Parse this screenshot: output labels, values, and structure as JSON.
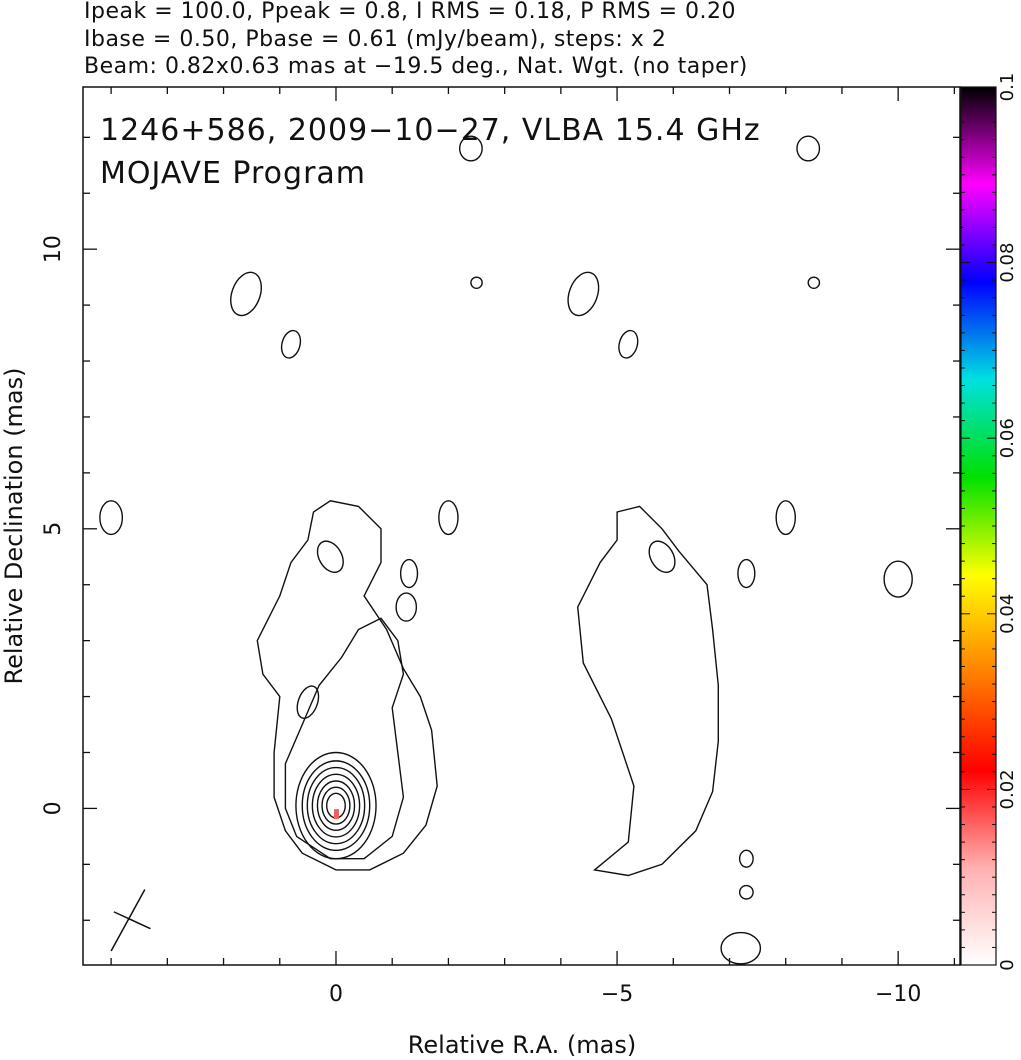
{
  "header": {
    "line1": "Ipeak = 100.0, Ppeak = 0.8, I RMS = 0.18, P RMS = 0.20",
    "line2": "Ibase = 0.50, Pbase = 0.61 (mJy/beam), steps: x 2",
    "line3": "Beam: 0.82x0.63 mas at −19.5 deg., Nat. Wgt. (no taper)"
  },
  "plot_text": {
    "line1": "1246+586, 2009−10−27, VLBA 15.4 GHz",
    "line2": "MOJAVE Program"
  },
  "chart_data": {
    "type": "contour",
    "xlabel": "Relative R.A. (mas)",
    "ylabel": "Relative Declination (mas)",
    "xlim": [
      4.5,
      -11.1
    ],
    "ylim": [
      -2.8,
      12.9
    ],
    "x_ticks": [
      {
        "value": 0,
        "label": "0"
      },
      {
        "value": -5,
        "label": "−5"
      },
      {
        "value": -10,
        "label": "−10"
      }
    ],
    "y_ticks": [
      {
        "value": 0,
        "label": "0"
      },
      {
        "value": 5,
        "label": "5"
      },
      {
        "value": 10,
        "label": "10"
      }
    ],
    "panels": [
      {
        "name": "I",
        "offset_x": 0
      },
      {
        "name": "P",
        "offset_x": -6
      }
    ],
    "contour_levels_mJy_per_beam": [
      0.5,
      1,
      2,
      4,
      8,
      16,
      32,
      64
    ],
    "core_peak": {
      "x": 0,
      "y": 0,
      "value": 100.0
    },
    "beam": {
      "major": 0.82,
      "minor": 0.63,
      "pa_deg": -19.5
    },
    "colorbar": {
      "min": 0,
      "max": 0.1,
      "ticks": [
        {
          "value": 0,
          "label": "0"
        },
        {
          "value": 0.02,
          "label": "0.02"
        },
        {
          "value": 0.04,
          "label": "0.04"
        },
        {
          "value": 0.06,
          "label": "0.06"
        },
        {
          "value": 0.08,
          "label": "0.08"
        },
        {
          "value": 0.1,
          "label": "0.1"
        }
      ],
      "colors": [
        "#ffffff",
        "#ffb0b0",
        "#ff0000",
        "#ff8000",
        "#ffff00",
        "#00e000",
        "#00e0e0",
        "#0000ff",
        "#ff00ff",
        "#000000"
      ]
    }
  }
}
